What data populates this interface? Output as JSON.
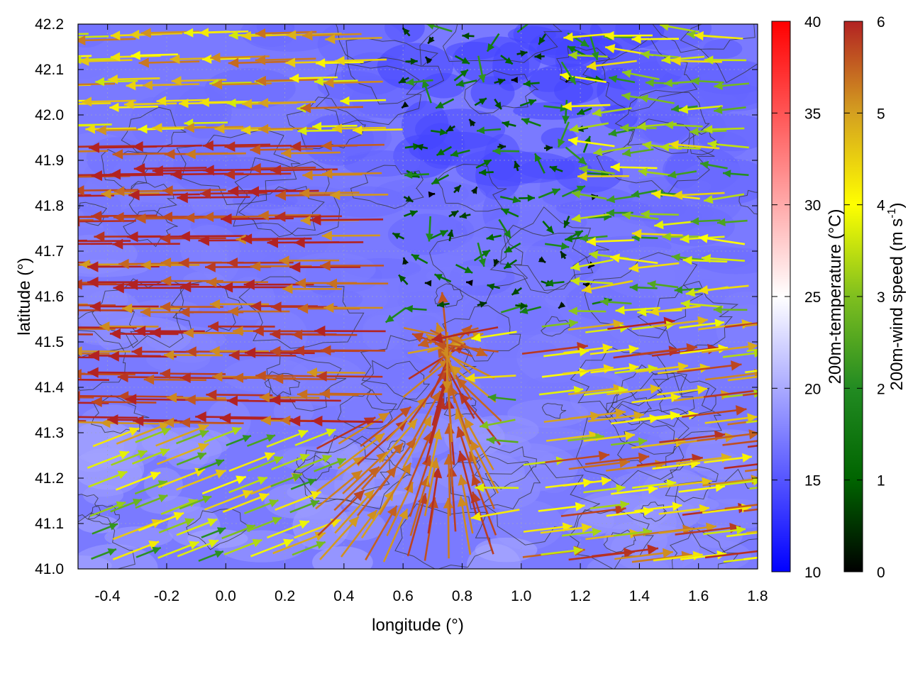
{
  "chart_data": {
    "type": "vector-field",
    "xlabel": "longitude (°)",
    "ylabel": "latitude (°)",
    "xlim": [
      -0.5,
      1.8
    ],
    "ylim": [
      41.0,
      42.2
    ],
    "xticks": [
      "-0.4",
      "-0.2",
      "0.0",
      "0.2",
      "0.4",
      "0.6",
      "0.8",
      "1.0",
      "1.2",
      "1.4",
      "1.6",
      "1.8"
    ],
    "yticks": [
      "41.0",
      "41.1",
      "41.2",
      "41.3",
      "41.4",
      "41.5",
      "41.6",
      "41.7",
      "41.8",
      "41.9",
      "42.0",
      "42.1",
      "42.2"
    ],
    "grid": true,
    "background_field": {
      "name": "200m-temperature",
      "label": "200m-temperature (°C)",
      "range": [
        10,
        40
      ],
      "ticks": [
        "10",
        "15",
        "20",
        "25",
        "30",
        "35",
        "40"
      ],
      "colors": [
        "#0000ff",
        "#ffffff",
        "#ff0000"
      ],
      "approx_value_range": [
        14,
        22
      ]
    },
    "vector_field": {
      "name": "200m-wind speed",
      "label": "200m-wind speed (m s",
      "label_exp": "-1",
      "label_end": ")",
      "range": [
        0,
        6
      ],
      "ticks": [
        "0",
        "1",
        "2",
        "3",
        "4",
        "5",
        "6"
      ],
      "colors": [
        "#000000",
        "#006400",
        "#228b22",
        "#7fbf1f",
        "#ffff00",
        "#d4a020",
        "#b22222"
      ],
      "flow_regions": [
        {
          "region": "west (lon -0.5 to 0.6, lat 41.3 to 42.2)",
          "direction": "westward",
          "speed": 5.5
        },
        {
          "region": "south-west convergence (lon 0.4 to 0.9, lat 41.0 to 41.5)",
          "direction": "converging toward lon 0.75, lat 41.5",
          "speed": 5.5
        },
        {
          "region": "north-east (lon 0.6 to 1.2, lat 41.6 to 42.2)",
          "direction": "weak / variable",
          "speed": 1.0
        },
        {
          "region": "south-east (lon 1.1 to 1.8, lat 41.0 to 41.5)",
          "direction": "eastward",
          "speed": 4.5
        }
      ]
    },
    "contours": {
      "color": "#333333",
      "description": "terrain elevation contours"
    }
  }
}
